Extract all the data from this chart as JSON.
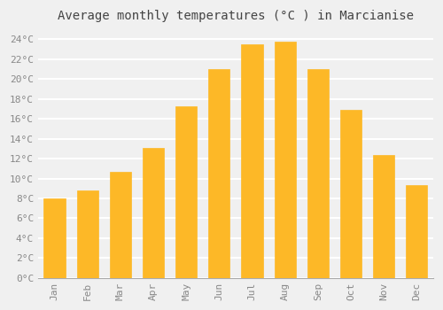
{
  "title": "Average monthly temperatures (°C ) in Marcianise",
  "months": [
    "Jan",
    "Feb",
    "Mar",
    "Apr",
    "May",
    "Jun",
    "Jul",
    "Aug",
    "Sep",
    "Oct",
    "Nov",
    "Dec"
  ],
  "temperatures": [
    8.0,
    8.8,
    10.7,
    13.1,
    17.3,
    21.0,
    23.5,
    23.8,
    21.0,
    16.9,
    12.4,
    9.3
  ],
  "bar_color": "#FDB827",
  "bar_edgecolor": "#FDB827",
  "ylim": [
    0,
    25
  ],
  "ytick_step": 2,
  "background_color": "#f0f0f0",
  "grid_color": "#ffffff",
  "text_color": "#888888",
  "title_fontsize": 10,
  "tick_fontsize": 8,
  "font_family": "monospace",
  "bar_width": 0.65
}
